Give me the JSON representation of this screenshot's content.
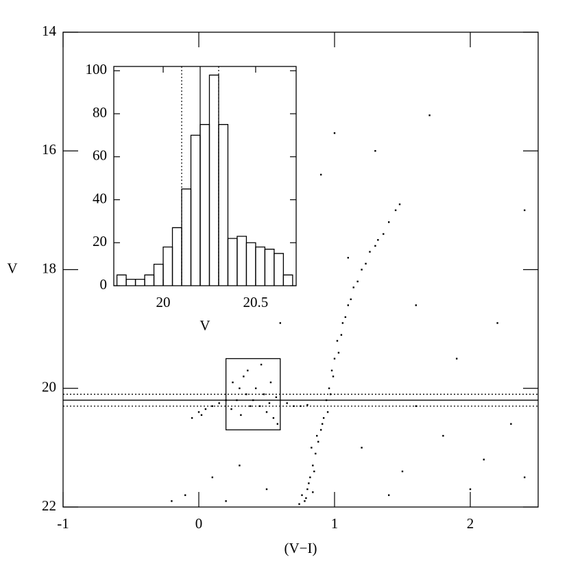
{
  "chart_data": [
    {
      "type": "scatter",
      "xlabel": "(V−I)",
      "ylabel": "V",
      "xlim": [
        -1,
        2.5
      ],
      "ylim": [
        14,
        22
      ],
      "y_inverted": true,
      "xticks": [
        -1,
        0,
        1,
        2
      ],
      "yticks": [
        14,
        16,
        18,
        20,
        22
      ],
      "color": "#000000",
      "x": [
        0.78,
        0.8,
        0.82,
        0.84,
        0.86,
        0.88,
        0.9,
        0.92,
        0.94,
        0.96,
        0.98,
        1.0,
        1.02,
        1.06,
        1.1,
        1.14,
        1.2,
        1.26,
        1.32,
        1.4,
        1.48,
        0.76,
        0.81,
        0.85,
        0.83,
        0.87,
        0.91,
        0.95,
        0.97,
        0.99,
        1.03,
        1.05,
        1.08,
        1.12,
        1.17,
        1.23,
        1.3,
        1.36,
        1.45,
        0.74,
        0.79,
        0.84,
        -0.05,
        0.0,
        0.05,
        0.1,
        0.15,
        0.2,
        0.7,
        0.75,
        0.8,
        0.65,
        0.02,
        0.25,
        0.3,
        0.35,
        0.4,
        0.45,
        0.5,
        0.55,
        0.28,
        0.33,
        0.38,
        0.42,
        0.48,
        0.52,
        0.57,
        0.24,
        0.36,
        0.46,
        0.58,
        0.31,
        0.53,
        0.1,
        -0.1,
        0.3,
        0.5,
        1.2,
        1.5,
        1.8,
        2.1,
        2.3,
        1.9,
        1.6,
        2.2,
        1.3,
        1.0,
        0.9,
        1.7,
        2.4,
        1.1,
        0.6,
        2.0,
        1.4,
        0.2,
        -0.2,
        1.6,
        2.4
      ],
      "y": [
        21.9,
        21.7,
        21.5,
        21.3,
        21.1,
        20.9,
        20.7,
        20.5,
        20.2,
        20.0,
        19.7,
        19.5,
        19.2,
        18.9,
        18.6,
        18.3,
        18.0,
        17.7,
        17.5,
        17.2,
        16.9,
        21.8,
        21.6,
        21.4,
        21.0,
        20.8,
        20.6,
        20.4,
        20.1,
        19.8,
        19.4,
        19.1,
        18.8,
        18.5,
        18.2,
        17.9,
        17.6,
        17.4,
        17.0,
        21.95,
        21.85,
        21.75,
        20.5,
        20.4,
        20.35,
        20.3,
        20.25,
        20.2,
        20.3,
        20.3,
        20.28,
        20.25,
        20.45,
        19.9,
        20.0,
        20.1,
        20.2,
        20.3,
        20.4,
        20.5,
        20.2,
        19.8,
        20.3,
        20.0,
        20.1,
        20.25,
        20.15,
        20.35,
        19.7,
        19.6,
        20.6,
        20.45,
        19.9,
        21.5,
        21.8,
        21.3,
        21.7,
        21.0,
        21.4,
        20.8,
        21.2,
        20.6,
        19.5,
        18.6,
        18.9,
        16.0,
        15.7,
        16.4,
        15.4,
        17.0,
        17.8,
        18.9,
        21.7,
        21.8,
        21.9,
        21.9,
        20.3,
        21.5
      ],
      "hlines": [
        {
          "value": 20.1,
          "style": "dotted"
        },
        {
          "value": 20.2,
          "style": "solid"
        },
        {
          "value": 20.3,
          "style": "dotted"
        }
      ],
      "box": {
        "x": [
          0.2,
          0.6
        ],
        "y": [
          19.5,
          20.7
        ]
      }
    },
    {
      "type": "histogram",
      "xlabel": "V",
      "bins": [
        19.75,
        19.8,
        19.85,
        19.9,
        19.95,
        20.0,
        20.05,
        20.1,
        20.15,
        20.2,
        20.25,
        20.3,
        20.35,
        20.4,
        20.45,
        20.5,
        20.55,
        20.6,
        20.65,
        20.7
      ],
      "values": [
        5,
        3,
        3,
        5,
        10,
        18,
        27,
        45,
        70,
        75,
        98,
        75,
        22,
        23,
        20,
        18,
        17,
        15,
        5
      ],
      "xlim": [
        19.733,
        20.719
      ],
      "ylim": [
        0,
        102
      ],
      "xticks": [
        20,
        20.5
      ],
      "yticks": [
        0,
        20,
        40,
        60,
        80,
        100
      ],
      "vlines": [
        {
          "value": 20.1,
          "style": "dotted"
        },
        {
          "value": 20.2,
          "style": "solid"
        },
        {
          "value": 20.3,
          "style": "dotted"
        }
      ]
    }
  ]
}
